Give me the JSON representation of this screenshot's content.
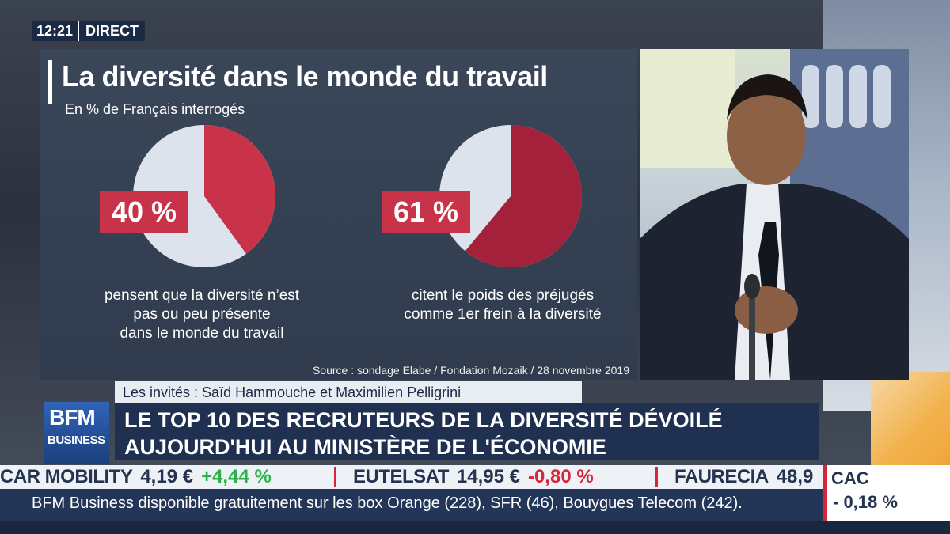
{
  "header": {
    "clock": "12:21",
    "live": "DIRECT"
  },
  "chart_data": {
    "type": "pie",
    "title": "La diversité dans le monde du travail",
    "subtitle": "En % de Français interrogés",
    "source": "Source : sondage Elabe / Fondation Mozaik / 28 novembre 2019",
    "pies": [
      {
        "value": 40,
        "label": "40 %",
        "caption": [
          "pensent que la diversité n’est",
          "pas ou peu présente",
          "dans le monde du travail"
        ],
        "color": "#c8334a",
        "rest_color": "#dde3ec"
      },
      {
        "value": 61,
        "label": "61 %",
        "caption": [
          "citent le poids des préjugés",
          "comme 1er frein à la diversité"
        ],
        "color": "#a3213a",
        "rest_color": "#dde3ec"
      }
    ]
  },
  "lower_third": {
    "guests": "Les invités : Saïd Hammouche et Maximilien Pelligrini",
    "headline_line1": "LE TOP 10 DES RECRUTEURS DE LA DIVERSITÉ DÉVOILÉ",
    "headline_line2": "AUJOURD'HUI AU MINISTÈRE DE L'ÉCONOMIE"
  },
  "logo": {
    "line1": "BFM",
    "line2": "BUSINESS"
  },
  "ticker": {
    "items": [
      {
        "name": "CAR MOBILITY",
        "price": "4,19 €",
        "change": "+4,44 %",
        "direction": "up"
      },
      {
        "name": "EUTELSAT",
        "price": "14,95 €",
        "change": "-0,80 %",
        "direction": "down"
      },
      {
        "name": "FAURECIA",
        "price": "48,9",
        "change": "",
        "direction": ""
      }
    ],
    "info": "BFM Business disponible gratuitement sur les box Orange (228), SFR (46), Bouygues Telecom (242).",
    "index": {
      "name": "CAC",
      "value": "- 0,18 %"
    }
  },
  "colors": {
    "accent_red": "#c8334a",
    "navy": "#1f3050",
    "up": "#2bb34a",
    "down": "#d6263a"
  }
}
